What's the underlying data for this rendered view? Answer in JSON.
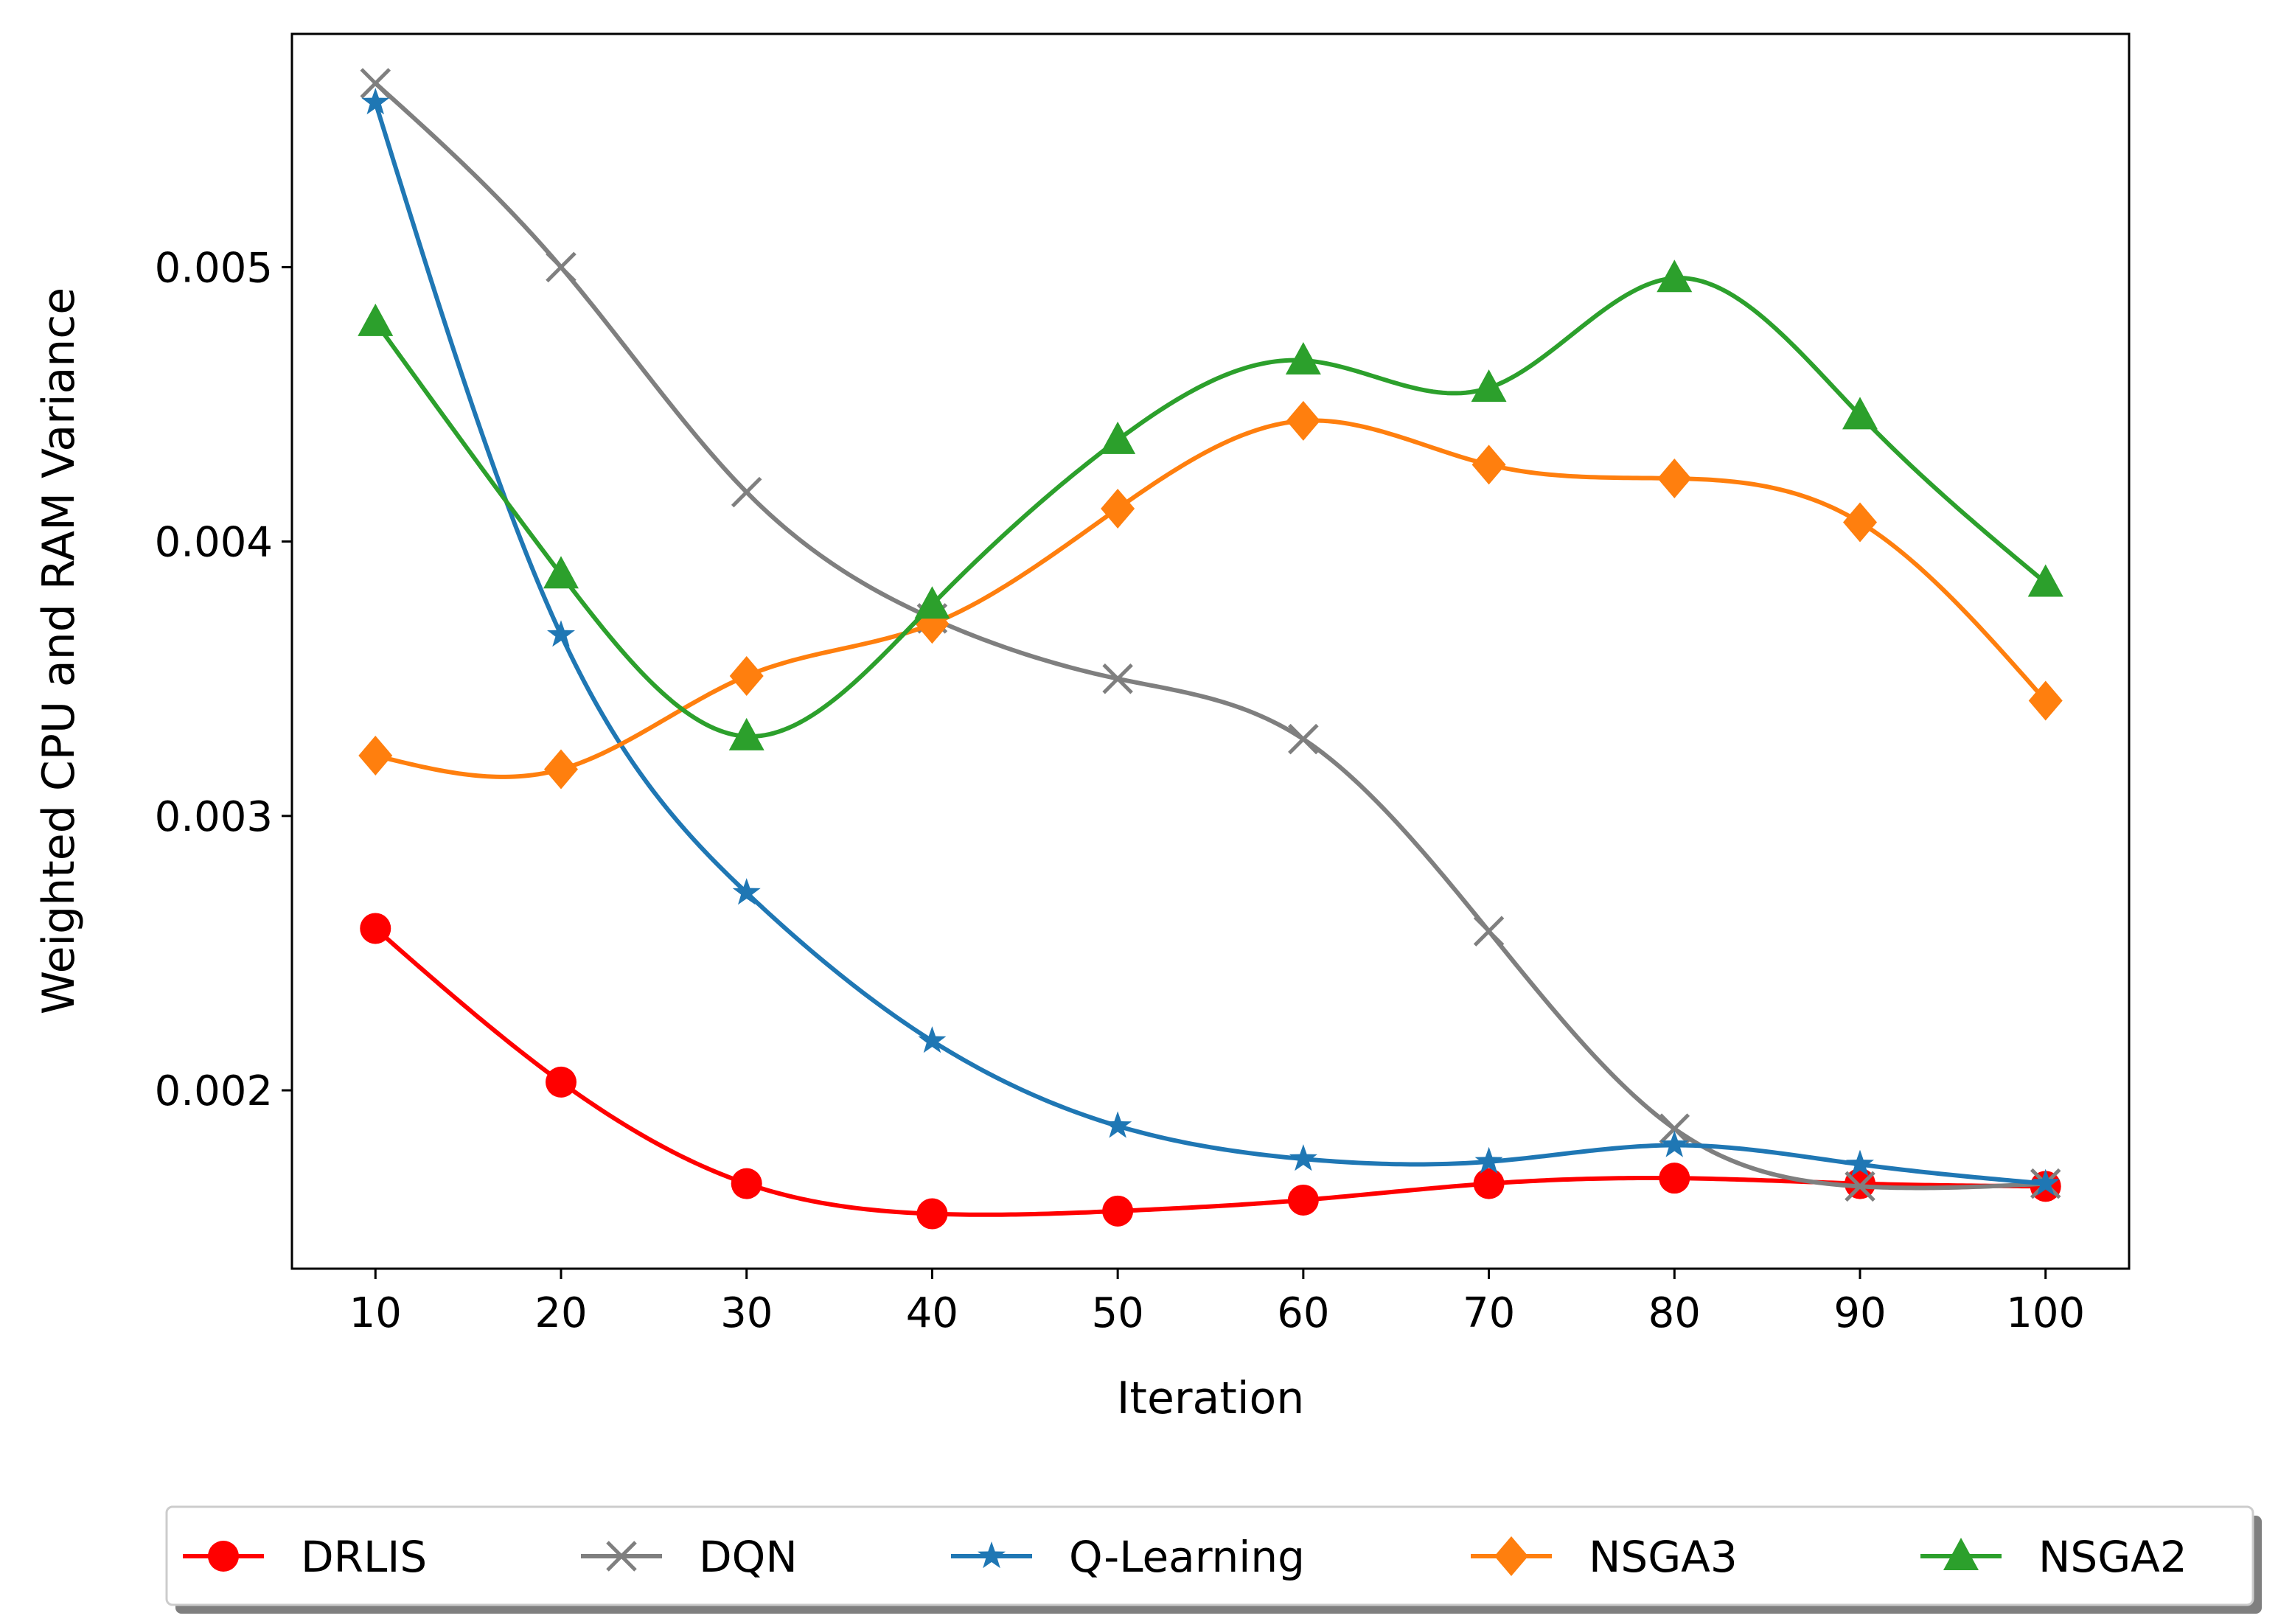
{
  "chart_data": {
    "type": "line",
    "title": "",
    "xlabel": "Iteration",
    "ylabel": "Weighted CPU and RAM Variance",
    "x": [
      10,
      20,
      30,
      40,
      50,
      60,
      70,
      80,
      90,
      100
    ],
    "xlim": [
      5.5,
      104.5
    ],
    "ylim": [
      0.00135,
      0.00585
    ],
    "xticks": [
      10,
      20,
      30,
      40,
      50,
      60,
      70,
      80,
      90,
      100
    ],
    "xtick_labels": [
      "10",
      "20",
      "30",
      "40",
      "50",
      "60",
      "70",
      "80",
      "90",
      "100"
    ],
    "yticks": [
      0.002,
      0.003,
      0.004,
      0.005
    ],
    "ytick_labels": [
      "0.002",
      "0.003",
      "0.004",
      "0.005"
    ],
    "grid": false,
    "legend_position": "bottom-center",
    "series": [
      {
        "name": "DRLIS",
        "color": "#ff0000",
        "marker": "circle",
        "values": [
          0.00259,
          0.00203,
          0.00166,
          0.00155,
          0.00156,
          0.0016,
          0.00166,
          0.00168,
          0.00166,
          0.00165
        ]
      },
      {
        "name": "DQN",
        "color": "#7f7f7f",
        "marker": "x",
        "values": [
          0.00567,
          0.005,
          0.00418,
          0.00372,
          0.0035,
          0.00328,
          0.00258,
          0.00186,
          0.00165,
          0.00166
        ]
      },
      {
        "name": "Q-Learning",
        "color": "#1f77b4",
        "marker": "star",
        "values": [
          0.0056,
          0.00366,
          0.00272,
          0.00218,
          0.00187,
          0.00175,
          0.00174,
          0.0018,
          0.00173,
          0.00166
        ]
      },
      {
        "name": "NSGA3",
        "color": "#ff7f0e",
        "marker": "diamond",
        "values": [
          0.00322,
          0.00317,
          0.00351,
          0.0037,
          0.00412,
          0.00444,
          0.00428,
          0.00423,
          0.00407,
          0.00342
        ]
      },
      {
        "name": "NSGA2",
        "color": "#2ca02c",
        "marker": "triangle",
        "values": [
          0.0048,
          0.00388,
          0.00329,
          0.00377,
          0.00437,
          0.00466,
          0.00456,
          0.00496,
          0.00446,
          0.00385
        ]
      }
    ]
  }
}
